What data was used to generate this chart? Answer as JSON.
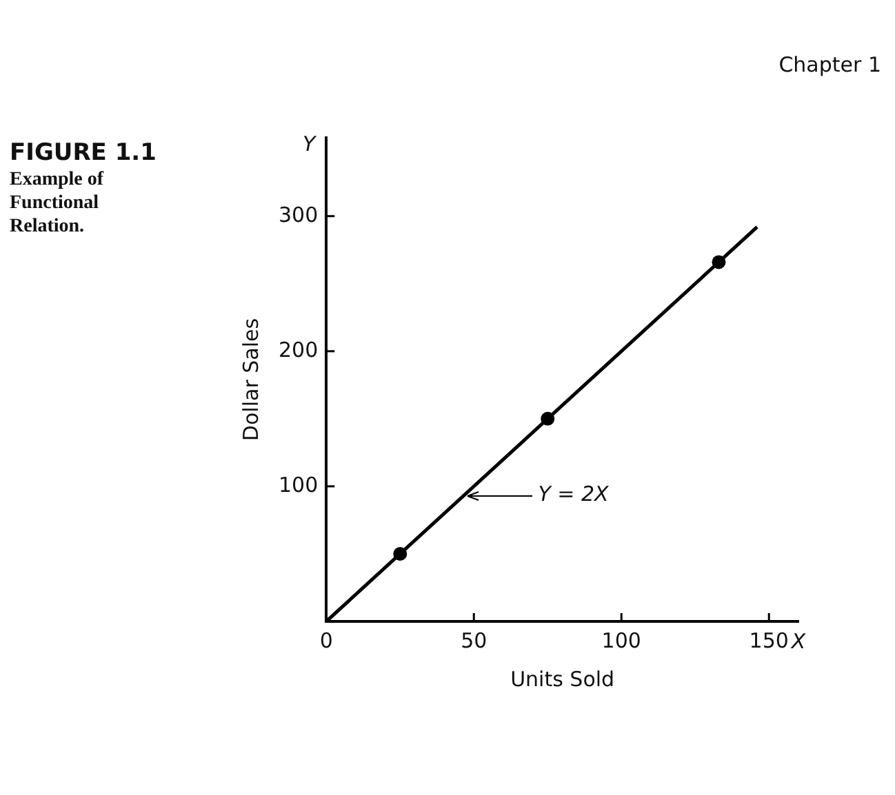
{
  "chart_data": {
    "type": "scatter",
    "title": "FIGURE 1.1",
    "subtitle": "Example of Functional Relation.",
    "xlabel": "Units Sold",
    "ylabel": "Dollar Sales",
    "annotations": [
      "Chapter 1",
      "Y",
      "X",
      "Y = 2X"
    ],
    "xlim": [
      0,
      160
    ],
    "ylim": [
      0,
      358
    ],
    "xticks": [
      0,
      50,
      100,
      150
    ],
    "yticks": [
      {
        "value": 0,
        "label": null
      },
      100,
      200,
      300
    ],
    "grid": false,
    "legend": false,
    "series": [
      {
        "type": "line",
        "color": "#000000",
        "x": [
          0,
          146
        ],
        "values": [
          0,
          292
        ],
        "marker": "none",
        "line_style": "solid"
      },
      {
        "type": "scatter",
        "color": "#000000",
        "x": [
          25,
          75,
          133
        ],
        "values": [
          50,
          150,
          266
        ],
        "marker": "circle"
      }
    ]
  }
}
